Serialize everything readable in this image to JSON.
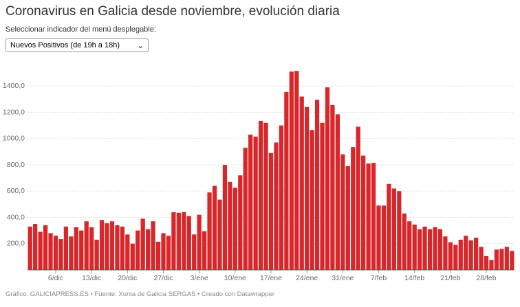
{
  "title": "Coronavirus en Galicia desde noviembre, evolución diaria",
  "subtitle": "Seleccionar indicador del menú desplegable:",
  "dropdown": {
    "selected": "Nuevos Positivos (de 19h a 18h)"
  },
  "footer": "Gráfico: GALICIAPRESS.ES • Fuente: Xunta de Galicia SERGAS • Creado con Datawrapper",
  "chart_data": {
    "type": "bar",
    "color": "#d7272b",
    "grid": true,
    "ylim": [
      0,
      1600
    ],
    "yticks": [
      {
        "value": 200,
        "label": "200,0"
      },
      {
        "value": 400,
        "label": "400,0"
      },
      {
        "value": 600,
        "label": "600,0"
      },
      {
        "value": 800,
        "label": "800,0"
      },
      {
        "value": 1000,
        "label": "1000,0"
      },
      {
        "value": 1200,
        "label": "1200,0"
      },
      {
        "value": 1400,
        "label": "1400,0"
      }
    ],
    "categories": [
      null,
      null,
      null,
      null,
      null,
      "6/dic",
      null,
      null,
      null,
      null,
      null,
      null,
      "13/dic",
      null,
      null,
      null,
      null,
      null,
      null,
      "20/dic",
      null,
      null,
      null,
      null,
      null,
      null,
      "27/dic",
      null,
      null,
      null,
      null,
      null,
      null,
      "3/ene",
      null,
      null,
      null,
      null,
      null,
      null,
      "10/ene",
      null,
      null,
      null,
      null,
      null,
      null,
      "17/ene",
      null,
      null,
      null,
      null,
      null,
      null,
      "24/ene",
      null,
      null,
      null,
      null,
      null,
      null,
      "31/ene",
      null,
      null,
      null,
      null,
      null,
      null,
      "7/feb",
      null,
      null,
      null,
      null,
      null,
      null,
      "14/feb",
      null,
      null,
      null,
      null,
      null,
      null,
      "21/feb",
      null,
      null,
      null,
      null,
      null,
      null,
      "28/feb",
      null,
      null,
      null,
      null,
      null
    ],
    "values": [
      330,
      350,
      290,
      340,
      280,
      260,
      235,
      330,
      255,
      325,
      300,
      370,
      325,
      230,
      380,
      355,
      370,
      340,
      330,
      270,
      200,
      300,
      390,
      310,
      370,
      215,
      280,
      260,
      440,
      435,
      440,
      410,
      270,
      420,
      295,
      590,
      640,
      535,
      800,
      670,
      625,
      720,
      930,
      1030,
      1015,
      1135,
      1120,
      890,
      970,
      1100,
      1355,
      1510,
      1515,
      1320,
      1240,
      1065,
      1295,
      1120,
      1390,
      1255,
      1185,
      880,
      790,
      935,
      1090,
      870,
      810,
      815,
      490,
      490,
      655,
      620,
      600,
      430,
      370,
      345,
      310,
      330,
      310,
      325,
      310,
      255,
      210,
      190,
      230,
      260,
      225,
      245,
      175,
      105,
      75,
      155,
      160,
      175,
      145
    ]
  }
}
